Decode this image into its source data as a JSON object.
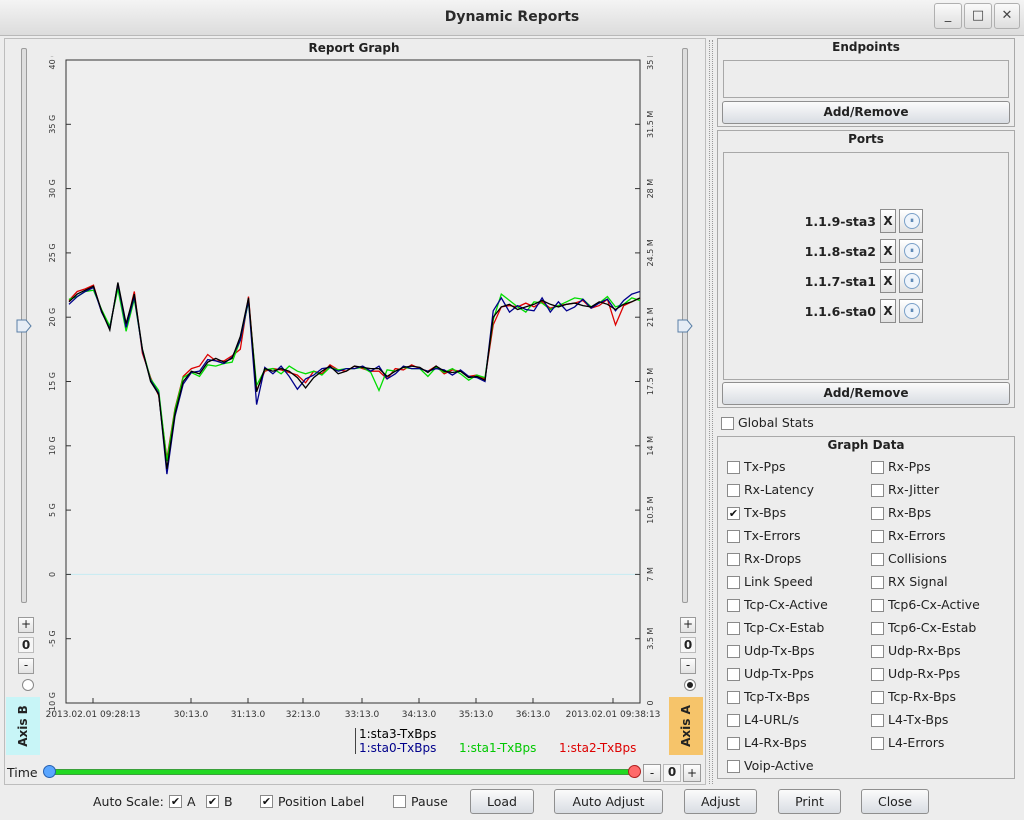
{
  "window": {
    "title": "Dynamic Reports",
    "minimize_icon": "minimize-icon",
    "maximize_icon": "maximize-icon",
    "close_icon": "close-icon"
  },
  "graph": {
    "title": "Report Graph",
    "axis_b_label": "Axis B",
    "axis_a_label": "Axis A",
    "axis_b_stepper": {
      "plus": "+",
      "value": "0",
      "minus": "-"
    },
    "axis_a_stepper": {
      "plus": "+",
      "value": "0",
      "minus": "-"
    },
    "legend": [
      {
        "label": "1:sta3-TxBps",
        "color": "#000000"
      },
      {
        "label": "1:sta0-TxBps",
        "color": "#00008b"
      },
      {
        "label": "1:sta1-TxBps",
        "color": "#00dd00"
      },
      {
        "label": "1:sta2-TxBps",
        "color": "#dd0000"
      }
    ]
  },
  "time_bar": {
    "label": "Time",
    "minus": "-",
    "value": "0",
    "plus": "+"
  },
  "chart_data": {
    "type": "line",
    "title": "Report Graph",
    "left_axis": {
      "ticks": [
        "40 G",
        "35 G",
        "30 G",
        "25 G",
        "20 G",
        "15 G",
        "10 G",
        "5 G",
        "0",
        "-5 G",
        "-10 G"
      ],
      "ylim": [
        -10,
        40
      ],
      "unit": "G"
    },
    "right_axis": {
      "ticks": [
        "35 M",
        "31.5 M",
        "28 M",
        "24.5 M",
        "21 M",
        "17.5 M",
        "14 M",
        "10.5 M",
        "7 M",
        "3.5 M",
        "0"
      ],
      "ylim": [
        0,
        35
      ],
      "unit": "M"
    },
    "x_ticks": [
      "2013.02.01 09:28:13",
      "30:13.0",
      "31:13.0",
      "32:13.0",
      "33:13.0",
      "34:13.0",
      "35:13.0",
      "36:13.0",
      "2013.02.01 09:38:13"
    ],
    "x_range": [
      0,
      100
    ],
    "series": [
      {
        "name": "1:sta3-TxBps",
        "color": "#000000",
        "values": [
          21.2,
          21.8,
          22.1,
          22.4,
          20.5,
          19,
          22.7,
          19.5,
          21.8,
          17.5,
          15,
          14,
          8.2,
          12.5,
          15,
          15.8,
          15.6,
          16.5,
          16.8,
          16.5,
          16.8,
          18.5,
          21.5,
          14.2,
          16,
          15.8,
          16,
          15.8,
          15.3,
          14.5,
          15.3,
          15.8,
          16.2,
          15.6,
          15.8,
          16.2,
          16.1,
          16,
          16,
          15.4,
          15.8,
          16.1,
          16.2,
          16.1,
          15.7,
          16.2,
          15.8,
          15.7,
          15.8,
          15.3,
          15.4,
          15.1,
          20,
          20.8,
          21,
          20.6,
          20.8,
          21,
          21.3,
          21,
          20.8,
          21,
          21.1,
          20.9,
          20.8,
          21.2,
          21,
          20.6,
          21,
          21.2,
          21.5
        ]
      },
      {
        "name": "1:sta0-TxBps",
        "color": "#00008b",
        "values": [
          21,
          21.6,
          22,
          22.3,
          20.4,
          19.1,
          22.6,
          19.2,
          21.6,
          17.4,
          15.1,
          14.1,
          7.8,
          12.3,
          14.8,
          15.7,
          15.8,
          16.7,
          16.6,
          16.4,
          16.9,
          18.2,
          21.3,
          13.2,
          16.1,
          15.6,
          16.2,
          15.4,
          14.4,
          15.2,
          15.5,
          16,
          16.1,
          15.8,
          16,
          16,
          16.2,
          15.8,
          16.2,
          15.2,
          15.6,
          16.2,
          16,
          16,
          15.8,
          16,
          15.9,
          15.5,
          15.9,
          15.4,
          15.3,
          15,
          20.5,
          21.5,
          20.4,
          20.9,
          20.6,
          20.5,
          21.5,
          20.4,
          21.2,
          20.5,
          20.8,
          21.4,
          20.7,
          21.1,
          21.4,
          20.5,
          21.3,
          21.8,
          22
        ]
      },
      {
        "name": "1:sta1-TxBps",
        "color": "#00dd00",
        "values": [
          21.4,
          21.6,
          22,
          22.1,
          20.6,
          19.3,
          22.2,
          18.9,
          21.4,
          17.5,
          15.2,
          14.3,
          8.8,
          12.8,
          15.3,
          15.7,
          15.4,
          16.3,
          16.2,
          16.4,
          16.5,
          18.2,
          21.2,
          14.7,
          15.9,
          16,
          15.6,
          16.2,
          15.8,
          15.6,
          15.8,
          15.5,
          16.1,
          15.9,
          16,
          16,
          16.1,
          15.7,
          14.3,
          15.9,
          15.8,
          16.1,
          16,
          16,
          15.4,
          16.1,
          15.7,
          16,
          15.6,
          15.1,
          15.5,
          15.3,
          19.8,
          21.8,
          21.3,
          20.8,
          20.4,
          21.2,
          21.1,
          20.6,
          20.9,
          21.2,
          21.5,
          21.4,
          20.8,
          21.1,
          21.6,
          20.8,
          21,
          21.5,
          21.3
        ]
      },
      {
        "name": "1:sta2-TxBps",
        "color": "#dd0000",
        "values": [
          21.3,
          22,
          22.2,
          22.5,
          20.4,
          19.2,
          22.4,
          19.3,
          22,
          17.2,
          15.3,
          13.9,
          9,
          12.9,
          15.4,
          16,
          16.2,
          17.1,
          16.6,
          16.6,
          17,
          17.5,
          21.6,
          14.3,
          15.8,
          16,
          15.9,
          15.7,
          15.5,
          14.9,
          15.8,
          15.6,
          16.3,
          15.9,
          15.8,
          16.2,
          16,
          15.8,
          15.8,
          15.2,
          16,
          15.9,
          16.3,
          16,
          15.8,
          16.2,
          15.6,
          15.9,
          15.8,
          15.4,
          15.5,
          15.2,
          19.4,
          20.8,
          20.9,
          20.8,
          21.1,
          20.8,
          21.2,
          20.7,
          20.9,
          21,
          21.1,
          21.3,
          20.7,
          20.9,
          21.4,
          19.4,
          20.9,
          21.2,
          21.5
        ]
      }
    ]
  },
  "endpoints": {
    "title": "Endpoints",
    "add_remove": "Add/Remove"
  },
  "ports": {
    "title": "Ports",
    "items": [
      {
        "name": "1.1.9-sta3",
        "remove": "X"
      },
      {
        "name": "1.1.8-sta2",
        "remove": "X"
      },
      {
        "name": "1.1.7-sta1",
        "remove": "X"
      },
      {
        "name": "1.1.6-sta0",
        "remove": "X"
      }
    ],
    "add_remove": "Add/Remove"
  },
  "global_stats": {
    "label": "Global Stats",
    "checked": false
  },
  "graph_data": {
    "title": "Graph Data",
    "items": [
      {
        "label": "Tx-Pps",
        "checked": false
      },
      {
        "label": "Rx-Pps",
        "checked": false
      },
      {
        "label": "Rx-Latency",
        "checked": false
      },
      {
        "label": "Rx-Jitter",
        "checked": false
      },
      {
        "label": "Tx-Bps",
        "checked": true
      },
      {
        "label": "Rx-Bps",
        "checked": false
      },
      {
        "label": "Tx-Errors",
        "checked": false
      },
      {
        "label": "Rx-Errors",
        "checked": false
      },
      {
        "label": "Rx-Drops",
        "checked": false
      },
      {
        "label": "Collisions",
        "checked": false
      },
      {
        "label": "Link Speed",
        "checked": false
      },
      {
        "label": "RX Signal",
        "checked": false
      },
      {
        "label": "Tcp-Cx-Active",
        "checked": false
      },
      {
        "label": "Tcp6-Cx-Active",
        "checked": false
      },
      {
        "label": "Tcp-Cx-Estab",
        "checked": false
      },
      {
        "label": "Tcp6-Cx-Estab",
        "checked": false
      },
      {
        "label": "Udp-Tx-Bps",
        "checked": false
      },
      {
        "label": "Udp-Rx-Bps",
        "checked": false
      },
      {
        "label": "Udp-Tx-Pps",
        "checked": false
      },
      {
        "label": "Udp-Rx-Pps",
        "checked": false
      },
      {
        "label": "Tcp-Tx-Bps",
        "checked": false
      },
      {
        "label": "Tcp-Rx-Bps",
        "checked": false
      },
      {
        "label": "L4-URL/s",
        "checked": false
      },
      {
        "label": "L4-Tx-Bps",
        "checked": false
      },
      {
        "label": "L4-Rx-Bps",
        "checked": false
      },
      {
        "label": "L4-Errors",
        "checked": false
      },
      {
        "label": "Voip-Active",
        "checked": false
      }
    ]
  },
  "bottom_bar": {
    "auto_scale_label": "Auto Scale:",
    "a_label": "A",
    "a_checked": true,
    "b_label": "B",
    "b_checked": true,
    "position_label": "Position Label",
    "position_checked": true,
    "pause_label": "Pause",
    "pause_checked": false,
    "load": "Load",
    "auto_adjust": "Auto Adjust",
    "adjust": "Adjust",
    "print": "Print",
    "close": "Close"
  }
}
